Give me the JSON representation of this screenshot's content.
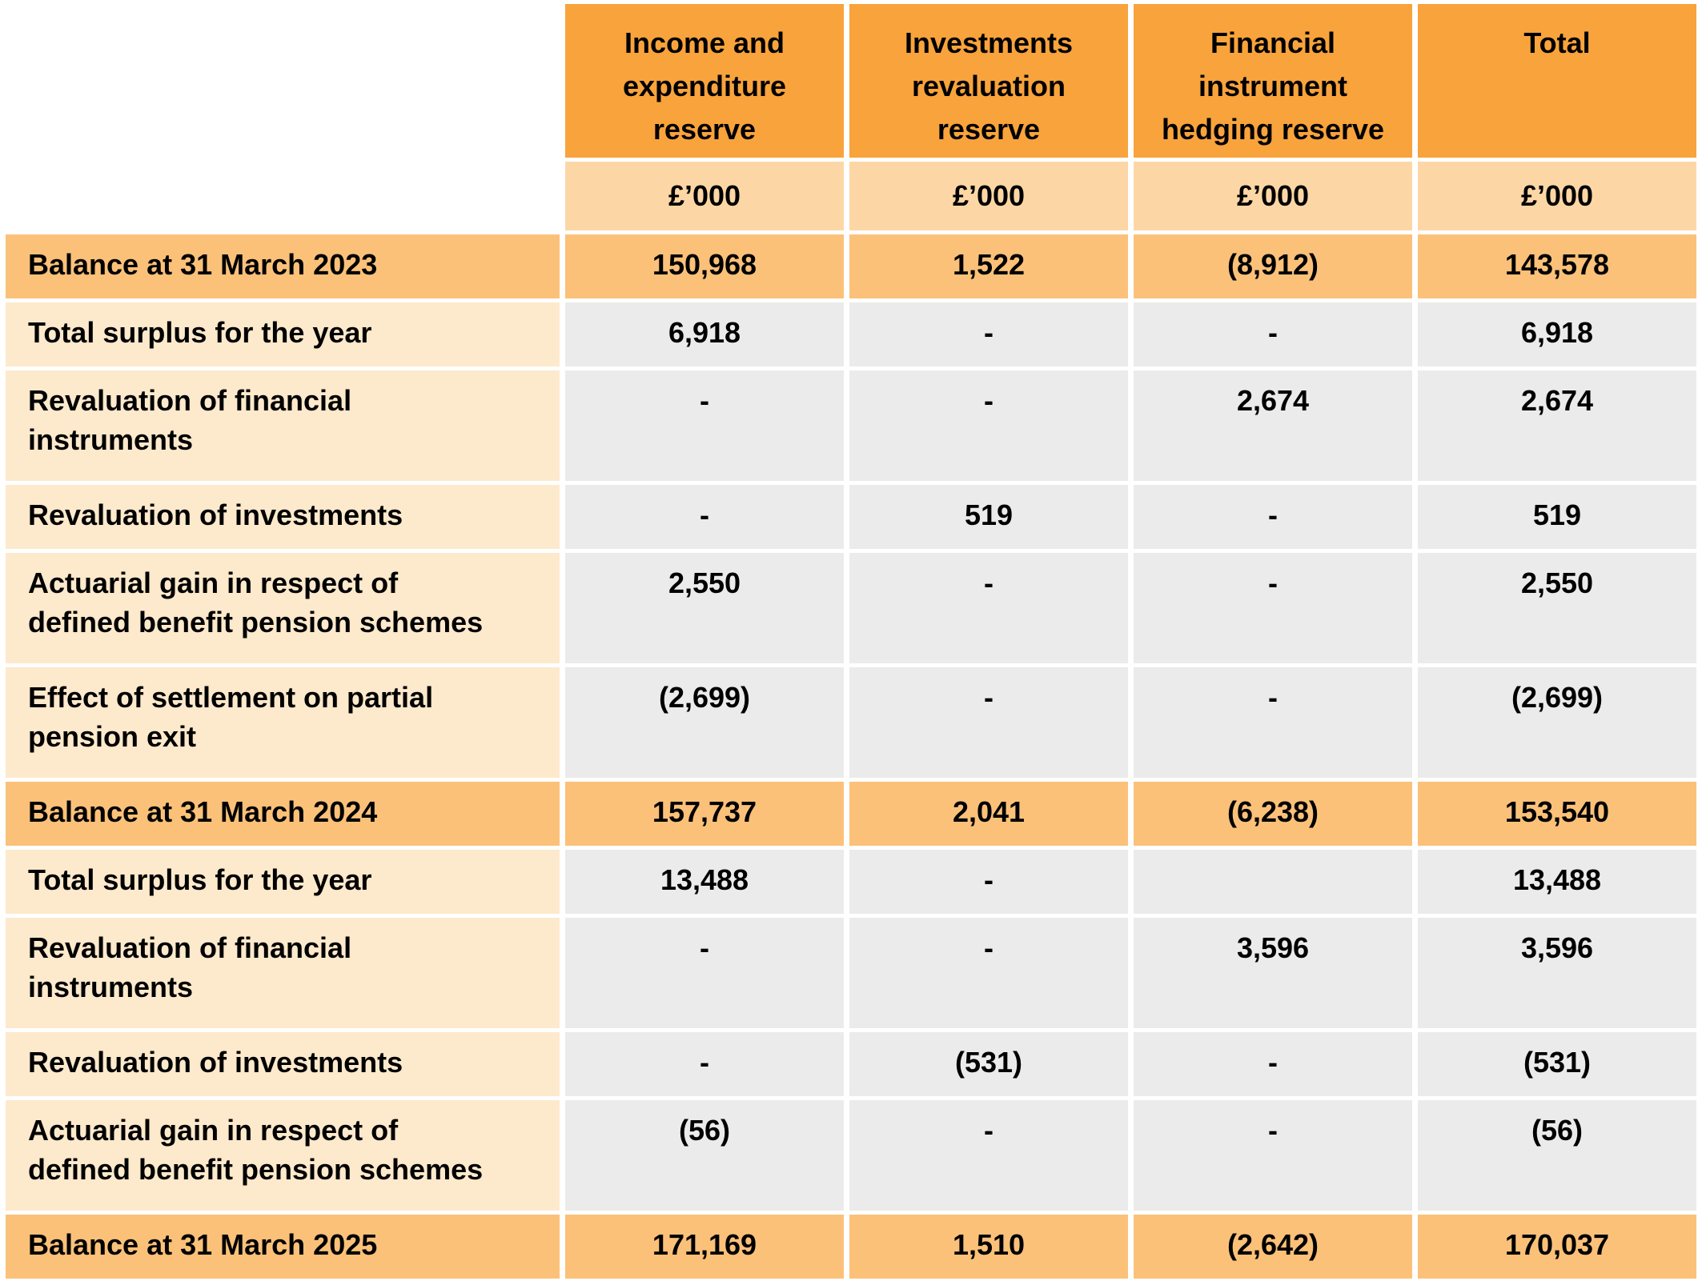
{
  "table": {
    "corner": "",
    "columns": [
      {
        "label": "Income and\nexpenditure\nreserve",
        "unit": "£’000"
      },
      {
        "label": "Investments\nrevaluation\nreserve",
        "unit": "£’000"
      },
      {
        "label": "Financial\ninstrument\nhedging reserve",
        "unit": "£’000"
      },
      {
        "label": "Total",
        "unit": "£’000"
      }
    ],
    "rows": [
      {
        "label": "Balance at 31 March 2023",
        "type": "balance",
        "values": [
          "150,968",
          "1,522",
          "(8,912)",
          "143,578"
        ]
      },
      {
        "label": "Total surplus for the year",
        "type": "normal",
        "values": [
          "6,918",
          "-",
          "-",
          "6,918"
        ]
      },
      {
        "label": "Revaluation of financial\ninstruments",
        "type": "normal",
        "values": [
          "-",
          "-",
          "2,674",
          "2,674"
        ]
      },
      {
        "label": "Revaluation of investments",
        "type": "normal",
        "values": [
          "-",
          "519",
          "-",
          "519"
        ]
      },
      {
        "label": "Actuarial gain in respect of\ndefined benefit pension schemes",
        "type": "normal",
        "values": [
          "2,550",
          "-",
          "-",
          "2,550"
        ]
      },
      {
        "label": "Effect of settlement on partial\npension exit",
        "type": "normal",
        "values": [
          "(2,699)",
          "-",
          "-",
          "(2,699)"
        ]
      },
      {
        "label": "Balance at 31 March 2024",
        "type": "balance",
        "values": [
          "157,737",
          "2,041",
          "(6,238)",
          "153,540"
        ]
      },
      {
        "label": "Total surplus for the year",
        "type": "normal",
        "values": [
          "13,488",
          "-",
          "",
          "13,488"
        ]
      },
      {
        "label": "Revaluation of financial\ninstruments",
        "type": "normal",
        "values": [
          "-",
          "-",
          "3,596",
          "3,596"
        ]
      },
      {
        "label": "Revaluation of investments",
        "type": "normal",
        "values": [
          "-",
          "(531)",
          "-",
          "(531)"
        ]
      },
      {
        "label": "Actuarial gain in respect of\ndefined benefit pension schemes",
        "type": "normal",
        "values": [
          "(56)",
          "-",
          "-",
          "(56)"
        ]
      },
      {
        "label": "Balance at 31 March 2025",
        "type": "balance",
        "values": [
          "171,169",
          "1,510",
          "(2,642)",
          "170,037"
        ]
      }
    ]
  },
  "colors": {
    "header_bg": "#F8A33C",
    "unit_bg": "#FCD7A5",
    "balance_bg": "#FBC179",
    "label_bg": "#FDE9CC",
    "value_bg": "#EBEBEB",
    "text": "#000000",
    "page_bg": "#FFFFFF"
  }
}
